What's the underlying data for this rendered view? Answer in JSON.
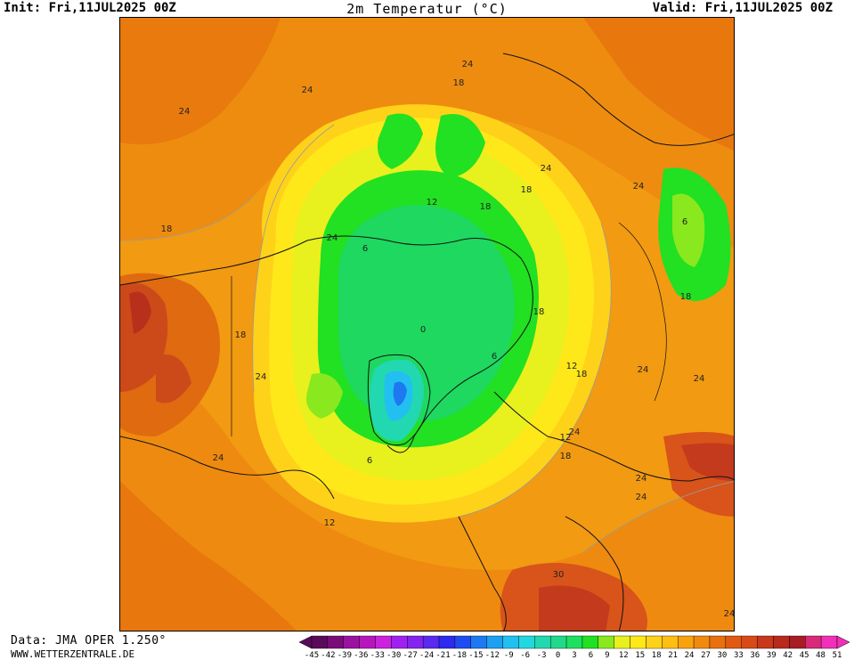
{
  "header": {
    "init": "Init: Fri,11JUL2025 00Z",
    "title": "2m Temperatur (°C)",
    "valid": "Valid: Fri,11JUL2025 00Z"
  },
  "footer": {
    "source": "Data: JMA OPER 1.250°",
    "website": "WWW.WETTERZENTRALE.DE"
  },
  "colorbar": {
    "labels": [
      "-45",
      "-42",
      "-39",
      "-36",
      "-33",
      "-30",
      "-27",
      "-24",
      "-21",
      "-18",
      "-15",
      "-12",
      "-9",
      "-6",
      "-3",
      "0",
      "3",
      "6",
      "9",
      "12",
      "15",
      "18",
      "21",
      "24",
      "27",
      "30",
      "33",
      "36",
      "39",
      "42",
      "45",
      "48",
      "51"
    ],
    "colors": [
      "#5a0a5a",
      "#7a0c7a",
      "#9a12a0",
      "#b716bd",
      "#cc22dd",
      "#a020f0",
      "#8424ee",
      "#5a2aee",
      "#2e2aee",
      "#1e4cf0",
      "#1e78f0",
      "#1ea0f0",
      "#22c0f0",
      "#22d8e0",
      "#22d8b0",
      "#22d88a",
      "#1ee060",
      "#22e022",
      "#8ae81e",
      "#e8f01e",
      "#ffe81a",
      "#ffd21a",
      "#ffbe12",
      "#f8a20e",
      "#f08a0e",
      "#e8700e",
      "#e05a12",
      "#d84a16",
      "#c8381a",
      "#b82a1c",
      "#a81c24",
      "#d82a78",
      "#f030b8"
    ]
  },
  "map_labels": [
    "24",
    "18",
    "24",
    "24",
    "18",
    "18",
    "24",
    "12",
    "18",
    "6",
    "6",
    "18",
    "0",
    "18",
    "6",
    "12",
    "18",
    "24",
    "6",
    "24",
    "18",
    "24",
    "24",
    "24",
    "12",
    "18",
    "24",
    "24",
    "24",
    "30",
    "24",
    "24",
    "12"
  ]
}
